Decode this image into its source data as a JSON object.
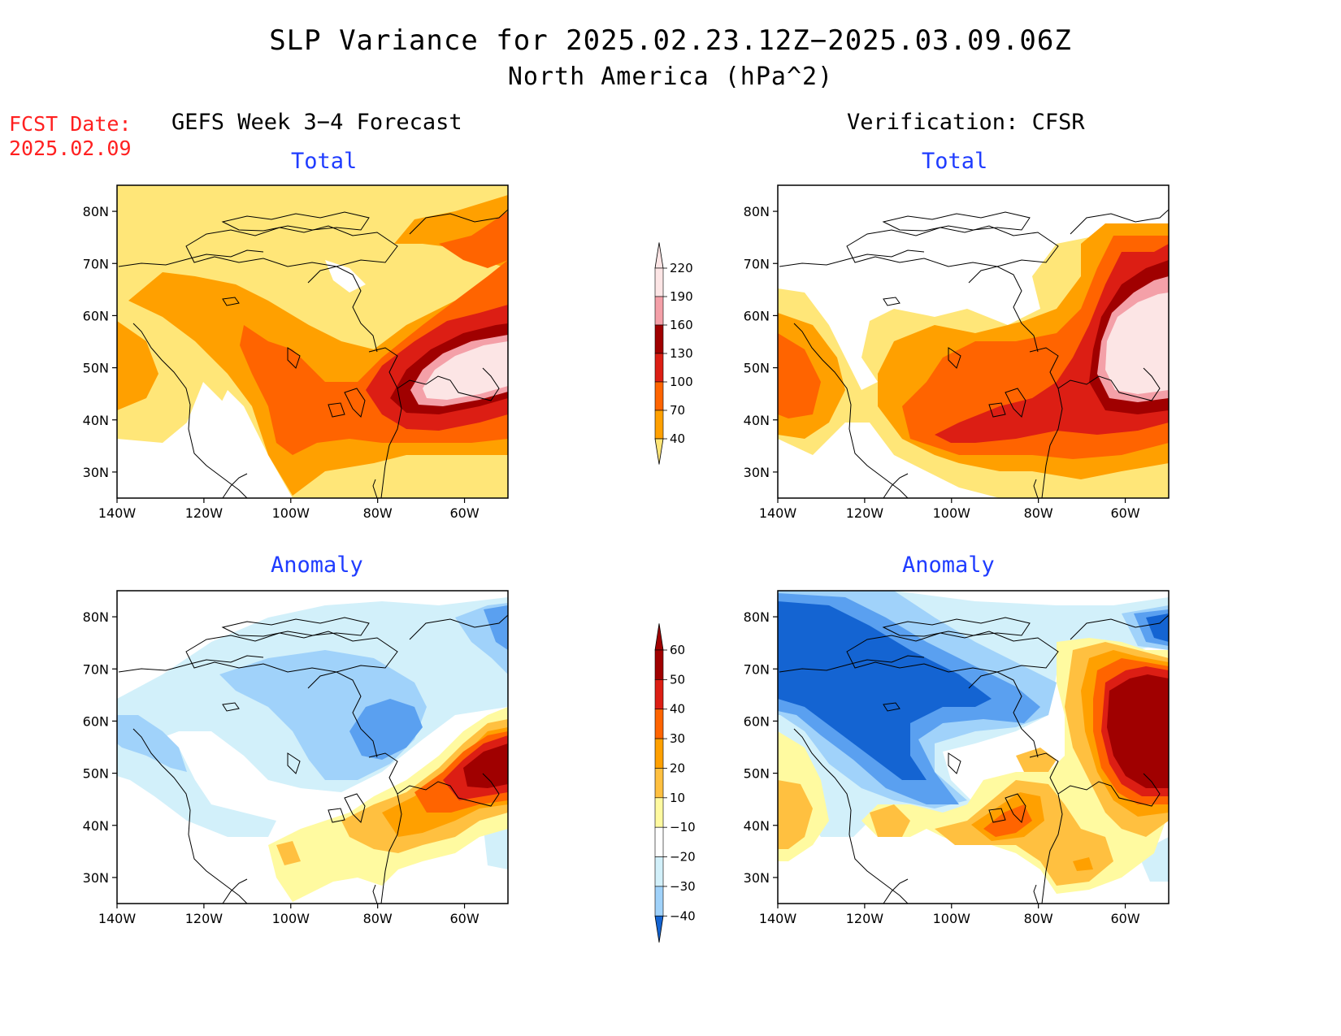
{
  "title": {
    "line1": "SLP Variance for 2025.02.23.12Z−2025.03.09.06Z",
    "line2": "North America (hPa^2)"
  },
  "fcst_date": {
    "label": "FCST Date:",
    "value": "2025.02.09"
  },
  "columns": {
    "left": "GEFS Week 3−4 Forecast",
    "right": "Verification: CFSR"
  },
  "panels": {
    "top_left": "Total",
    "top_right": "Total",
    "bottom_left": "Anomaly",
    "bottom_right": "Anomaly"
  },
  "map_axes": {
    "lat_labels": [
      "80N",
      "70N",
      "60N",
      "50N",
      "40N",
      "30N"
    ],
    "lat_values": [
      80,
      70,
      60,
      50,
      40,
      30
    ],
    "lon_labels": [
      "140W",
      "120W",
      "100W",
      "80W",
      "60W"
    ],
    "lon_values": [
      -140,
      -120,
      -100,
      -80,
      -60
    ],
    "lon_range": [
      -140,
      -50
    ],
    "lat_range": [
      25,
      85
    ]
  },
  "colorbar_total": {
    "levels": [
      "220",
      "190",
      "160",
      "130",
      "100",
      "70",
      "40"
    ],
    "colors": [
      "#fce5e5",
      "#f4a0a8",
      "#a00000",
      "#dc1e14",
      "#ff6400",
      "#ffa000",
      "#ffe678"
    ]
  },
  "colorbar_anomaly": {
    "levels": [
      "60",
      "50",
      "40",
      "30",
      "20",
      "10",
      "−10",
      "−20",
      "−30",
      "−40"
    ],
    "colors": [
      "#a00000",
      "#dc1e14",
      "#ff6400",
      "#ffa000",
      "#ffc040",
      "#fffaa0",
      "#ffffff",
      "#d2f0fa",
      "#a0d2fa",
      "#5aa0f0",
      "#1464d2"
    ]
  }
}
